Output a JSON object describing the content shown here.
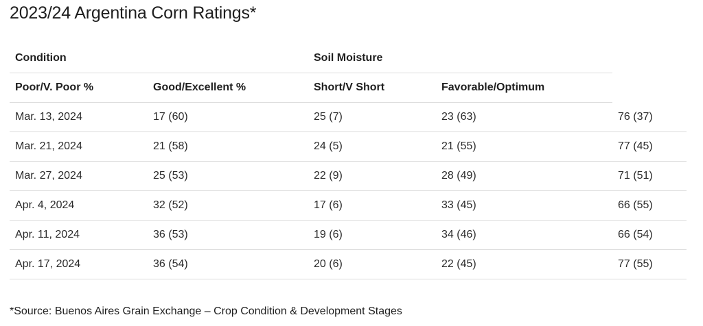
{
  "title": "2023/24 Argentina Corn Ratings*",
  "table": {
    "group_headers": [
      "Condition",
      "Soil Moisture"
    ],
    "columns": [
      "Poor/V. Poor %",
      "Good/Excellent %",
      "Short/V Short",
      "Favorable/Optimum"
    ],
    "rows": [
      [
        "Mar. 13, 2024",
        "17 (60)",
        "25 (7)",
        "23 (63)",
        "76 (37)"
      ],
      [
        "Mar. 21, 2024",
        "21 (58)",
        "24 (5)",
        "21 (55)",
        "77 (45)"
      ],
      [
        "Mar. 27, 2024",
        "25 (53)",
        "22 (9)",
        "28 (49)",
        "71 (51)"
      ],
      [
        "Apr. 4, 2024",
        "32 (52)",
        "17 (6)",
        "33 (45)",
        "66 (55)"
      ],
      [
        "Apr. 11, 2024",
        "36 (53)",
        "19 (6)",
        "34 (46)",
        "66 (54)"
      ],
      [
        "Apr. 17, 2024",
        "36 (54)",
        "20 (6)",
        "22 (45)",
        "77 (55)"
      ]
    ]
  },
  "footnote": "*Source: Buenos Aires Grain Exchange – Crop Condition & Development Stages"
}
